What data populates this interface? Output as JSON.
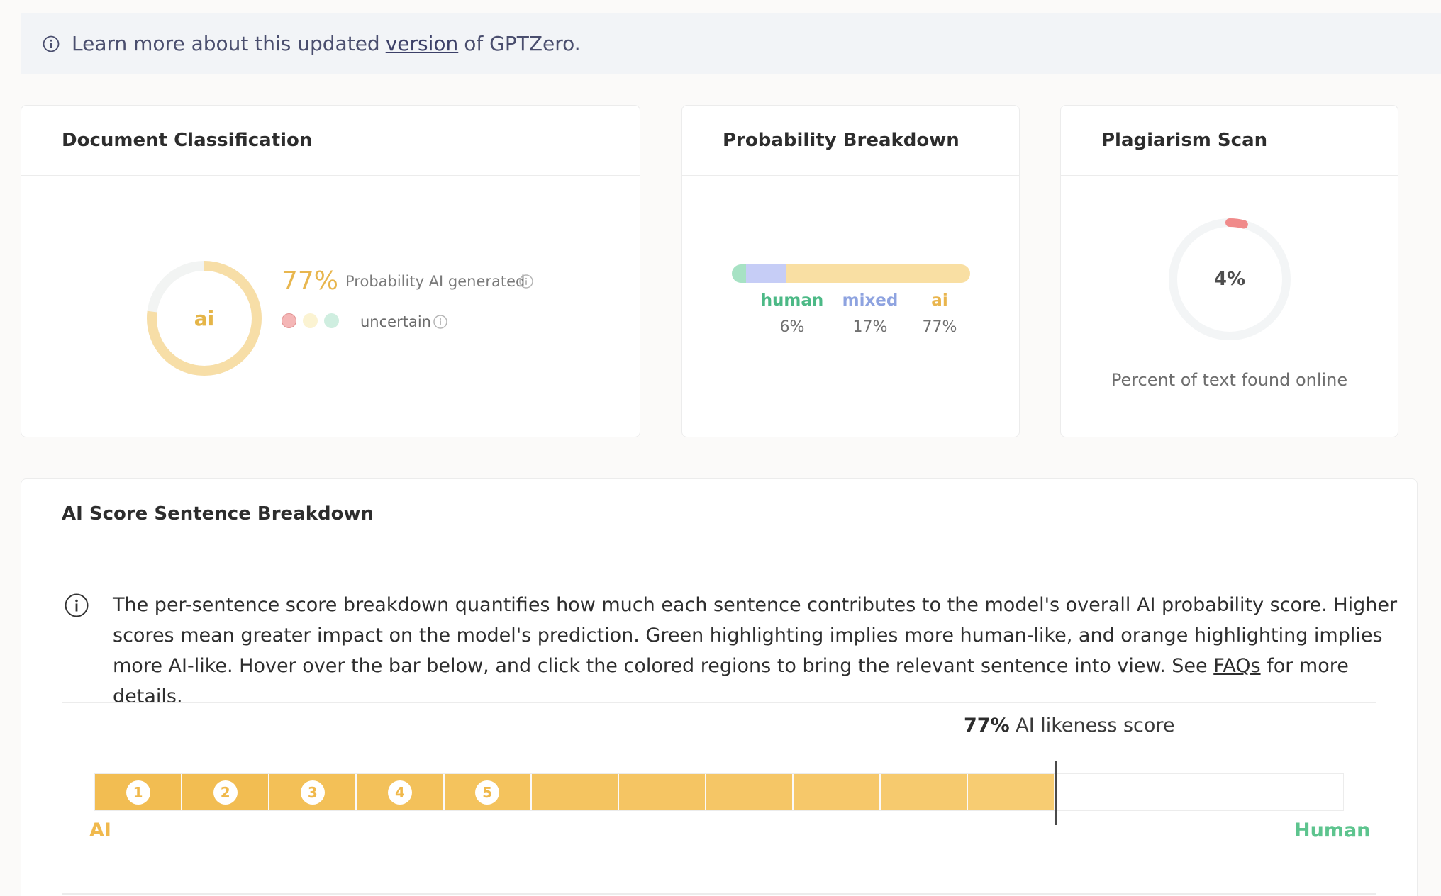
{
  "banner": {
    "prefix": "Learn more about this updated",
    "link": "version",
    "suffix": "of GPTZero."
  },
  "doc_classification": {
    "title": "Document Classification",
    "ring_label": "ai",
    "percent": "77%",
    "prob_label": "Probability AI generated",
    "uncertain_label": "uncertain",
    "ai_fraction": 0.77
  },
  "probability_breakdown": {
    "title": "Probability Breakdown",
    "segments": [
      {
        "label": "human",
        "value": "6%",
        "fraction": 0.06,
        "color": "#a7e2c4",
        "text_color": "#4cb986"
      },
      {
        "label": "mixed",
        "value": "17%",
        "fraction": 0.17,
        "color": "#c6cdf6",
        "text_color": "#8ea3e0"
      },
      {
        "label": "ai",
        "value": "77%",
        "fraction": 0.77,
        "color": "#f9dfa3",
        "text_color": "#e9b54d"
      }
    ]
  },
  "plagiarism": {
    "title": "Plagiarism Scan",
    "percent": "4%",
    "fraction": 0.04,
    "caption": "Percent of text found online"
  },
  "sentence_breakdown": {
    "title": "AI Score Sentence Breakdown",
    "description_main": "The per-sentence score breakdown quantifies how much each sentence contributes to the model's overall AI probability score. Higher scores mean greater impact on the model's prediction. Green highlighting implies more human-like, and orange highlighting implies more AI-like. Hover over the bar below, and click the colored regions to bring the relevant sentence into view. See",
    "faq_link": "FAQs",
    "description_end": "for more details.",
    "score_value": "77%",
    "score_label": "AI likeness score",
    "score_fraction": 0.77,
    "ai_end": "AI",
    "human_end": "Human",
    "segments": [
      {
        "badge": "1",
        "color": "#f2bd52"
      },
      {
        "badge": "2",
        "color": "#f2bd52"
      },
      {
        "badge": "3",
        "color": "#f3c057"
      },
      {
        "badge": "4",
        "color": "#f3c15a"
      },
      {
        "badge": "5",
        "color": "#f4c35d"
      },
      {
        "badge": "",
        "color": "#f4c460"
      },
      {
        "badge": "",
        "color": "#f5c563"
      },
      {
        "badge": "",
        "color": "#f5c666"
      },
      {
        "badge": "",
        "color": "#f6c86a"
      },
      {
        "badge": "",
        "color": "#f6ca6e"
      },
      {
        "badge": "",
        "color": "#f7cc72"
      }
    ]
  },
  "colors": {
    "ai_accent": "#e8b64e",
    "human_accent": "#5dc48e",
    "plagiarism_accent": "#f08a8a"
  }
}
